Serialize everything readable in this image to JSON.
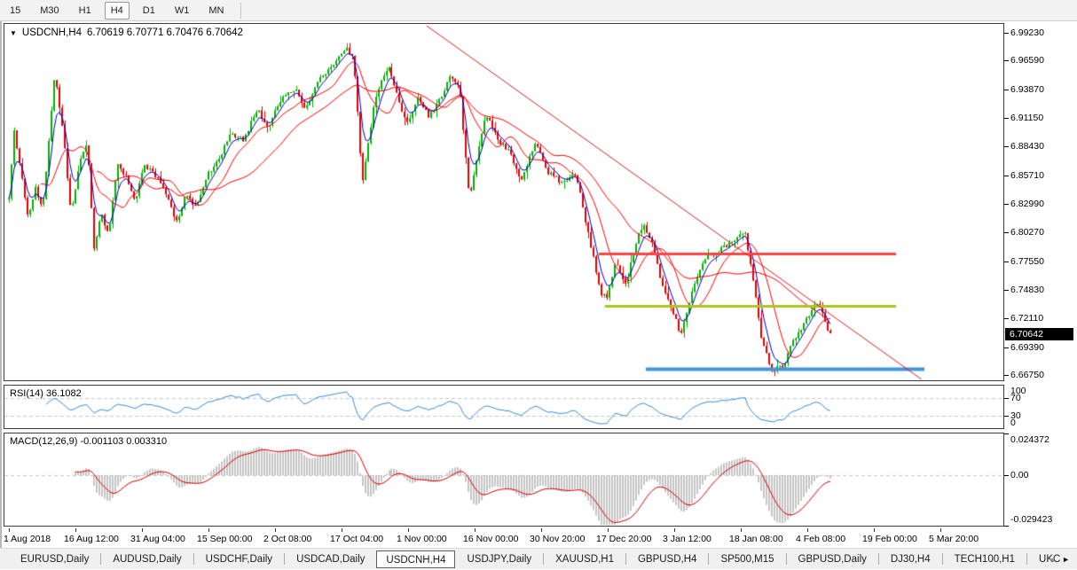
{
  "toolbar": {
    "timeframes": [
      {
        "label": "15",
        "active": false
      },
      {
        "label": "M30",
        "active": false
      },
      {
        "label": "H1",
        "active": false
      },
      {
        "label": "H4",
        "active": true
      },
      {
        "label": "D1",
        "active": false
      },
      {
        "label": "W1",
        "active": false
      },
      {
        "label": "MN",
        "active": false
      }
    ]
  },
  "chart_header": {
    "dropdown_icon": "▼",
    "title": "USDCNH,H4",
    "ohlc": "6.70619 6.70771 6.70476 6.70642"
  },
  "chart_data": {
    "type": "candlestick",
    "symbol": "USDCNH",
    "timeframe": "H4",
    "open": "6.70619",
    "high": "6.70771",
    "low": "6.70476",
    "close": "6.70642",
    "current_price": "6.70642",
    "bars": 310,
    "bar_span": [
      0.0044,
      0.8268
    ],
    "y_axis": {
      "top": 7.0008,
      "bottom": 6.6624,
      "ticks": [
        "6.99230",
        "6.96590",
        "6.93870",
        "6.91150",
        "6.88430",
        "6.85710",
        "6.82990",
        "6.80270",
        "6.77550",
        "6.74830",
        "6.72110",
        "6.69390",
        "6.66750"
      ]
    },
    "x_axis": {
      "labels": [
        "1 Aug 2018",
        "16 Aug 12:00",
        "31 Aug 04:00",
        "15 Sep 00:00",
        "2 Oct 08:00",
        "17 Oct 04:00",
        "1 Nov 00:00",
        "16 Nov 00:00",
        "30 Nov 20:00",
        "17 Dec 20:00",
        "3 Jan 12:00",
        "18 Jan 08:00",
        "4 Feb 08:00",
        "19 Feb 00:00",
        "5 Mar 20:00"
      ]
    },
    "colors": {
      "up": "#00B200",
      "down": "#E60000",
      "ma_fast": "#0000C8",
      "ma_slow": "#FF0000"
    },
    "price_path": [
      [
        0.0,
        6.835
      ],
      [
        0.0065,
        6.9
      ],
      [
        0.015,
        6.858
      ],
      [
        0.024,
        6.815
      ],
      [
        0.032,
        6.848
      ],
      [
        0.041,
        6.824
      ],
      [
        0.056,
        6.956
      ],
      [
        0.067,
        6.89
      ],
      [
        0.0756,
        6.82
      ],
      [
        0.086,
        6.868
      ],
      [
        0.095,
        6.89
      ],
      [
        0.1037,
        6.786
      ],
      [
        0.112,
        6.822
      ],
      [
        0.121,
        6.8
      ],
      [
        0.132,
        6.868
      ],
      [
        0.145,
        6.852
      ],
      [
        0.153,
        6.831
      ],
      [
        0.164,
        6.868
      ],
      [
        0.177,
        6.858
      ],
      [
        0.19,
        6.843
      ],
      [
        0.203,
        6.811
      ],
      [
        0.216,
        6.84
      ],
      [
        0.227,
        6.827
      ],
      [
        0.24,
        6.856
      ],
      [
        0.255,
        6.872
      ],
      [
        0.27,
        6.898
      ],
      [
        0.285,
        6.89
      ],
      [
        0.302,
        6.92
      ],
      [
        0.315,
        6.903
      ],
      [
        0.333,
        6.932
      ],
      [
        0.348,
        6.94
      ],
      [
        0.361,
        6.92
      ],
      [
        0.376,
        6.948
      ],
      [
        0.393,
        6.96
      ],
      [
        0.41,
        6.978
      ],
      [
        0.419,
        6.97
      ],
      [
        0.43,
        6.848
      ],
      [
        0.445,
        6.93
      ],
      [
        0.462,
        6.963
      ],
      [
        0.477,
        6.922
      ],
      [
        0.486,
        6.908
      ],
      [
        0.499,
        6.932
      ],
      [
        0.512,
        6.912
      ],
      [
        0.527,
        6.932
      ],
      [
        0.538,
        6.954
      ],
      [
        0.549,
        6.94
      ],
      [
        0.561,
        6.835
      ],
      [
        0.581,
        6.915
      ],
      [
        0.596,
        6.89
      ],
      [
        0.609,
        6.88
      ],
      [
        0.624,
        6.852
      ],
      [
        0.641,
        6.888
      ],
      [
        0.657,
        6.86
      ],
      [
        0.674,
        6.85
      ],
      [
        0.691,
        6.858
      ],
      [
        0.706,
        6.8
      ],
      [
        0.721,
        6.745
      ],
      [
        0.728,
        6.74
      ],
      [
        0.739,
        6.775
      ],
      [
        0.752,
        6.753
      ],
      [
        0.762,
        6.79
      ],
      [
        0.773,
        6.812
      ],
      [
        0.784,
        6.79
      ],
      [
        0.797,
        6.747
      ],
      [
        0.808,
        6.73
      ],
      [
        0.818,
        6.705
      ],
      [
        0.831,
        6.745
      ],
      [
        0.844,
        6.775
      ],
      [
        0.857,
        6.782
      ],
      [
        0.87,
        6.788
      ],
      [
        0.883,
        6.795
      ],
      [
        0.896,
        6.803
      ],
      [
        0.905,
        6.765
      ],
      [
        0.916,
        6.7
      ],
      [
        0.929,
        6.672
      ],
      [
        0.942,
        6.675
      ],
      [
        0.955,
        6.7
      ],
      [
        0.968,
        6.716
      ],
      [
        0.981,
        6.736
      ],
      [
        0.989,
        6.73
      ],
      [
        0.996,
        6.712
      ],
      [
        1.0,
        6.706
      ]
    ],
    "overlays": {
      "trendline": {
        "color": "#DD2020",
        "x1": 0.4227,
        "p1": 6.999,
        "x2": 0.918,
        "p2": 6.6633
      },
      "hlines": [
        {
          "name": "resistance-line",
          "color": "#FF4545",
          "price": 6.783,
          "x1": 0.595,
          "x2": 0.8926,
          "width": 3
        },
        {
          "name": "mid-support-line",
          "color": "#AFC41E",
          "price": 6.733,
          "x1": 0.601,
          "x2": 0.8926,
          "width": 3
        },
        {
          "name": "lower-support-line",
          "color": "#4196DC",
          "price": 6.6735,
          "x1": 0.642,
          "x2": 0.921,
          "width": 4
        }
      ]
    }
  },
  "rsi": {
    "label": "RSI(14)",
    "value": "36.1082",
    "period": 14,
    "color": "#3C8EDC",
    "level_color": "#C8C8C8",
    "levels": [
      70,
      30
    ],
    "range": [
      0,
      100
    ],
    "scale": [
      "100",
      "70",
      "30",
      "0"
    ]
  },
  "macd": {
    "label": "MACD(12,26,9)",
    "values": "-0.001103 0.003310",
    "histogram_color": "#C6C6C6",
    "signal_color": "#E00000",
    "range": [
      -0.029423,
      0.024372
    ],
    "scale": [
      "0.024372",
      "0.00",
      "-0.029423"
    ]
  },
  "tabs": {
    "items": [
      {
        "label": "EURUSD,Daily",
        "active": false
      },
      {
        "label": "AUDUSD,Daily",
        "active": false
      },
      {
        "label": "USDCHF,Daily",
        "active": false
      },
      {
        "label": "USDCAD,Daily",
        "active": false
      },
      {
        "label": "USDCNH,H4",
        "active": true
      },
      {
        "label": "USDJPY,Daily",
        "active": false
      },
      {
        "label": "XAUUSD,H1",
        "active": false
      },
      {
        "label": "GBPUSD,H4",
        "active": false
      },
      {
        "label": "SP500,M15",
        "active": false
      },
      {
        "label": "GBPUSD,Daily",
        "active": false
      },
      {
        "label": "DJ30,H4",
        "active": false
      },
      {
        "label": "TECH100,H1",
        "active": false
      },
      {
        "label": "UKC",
        "active": false
      }
    ],
    "scroll_left_icon": "◄",
    "scroll_right_icon": "►"
  }
}
